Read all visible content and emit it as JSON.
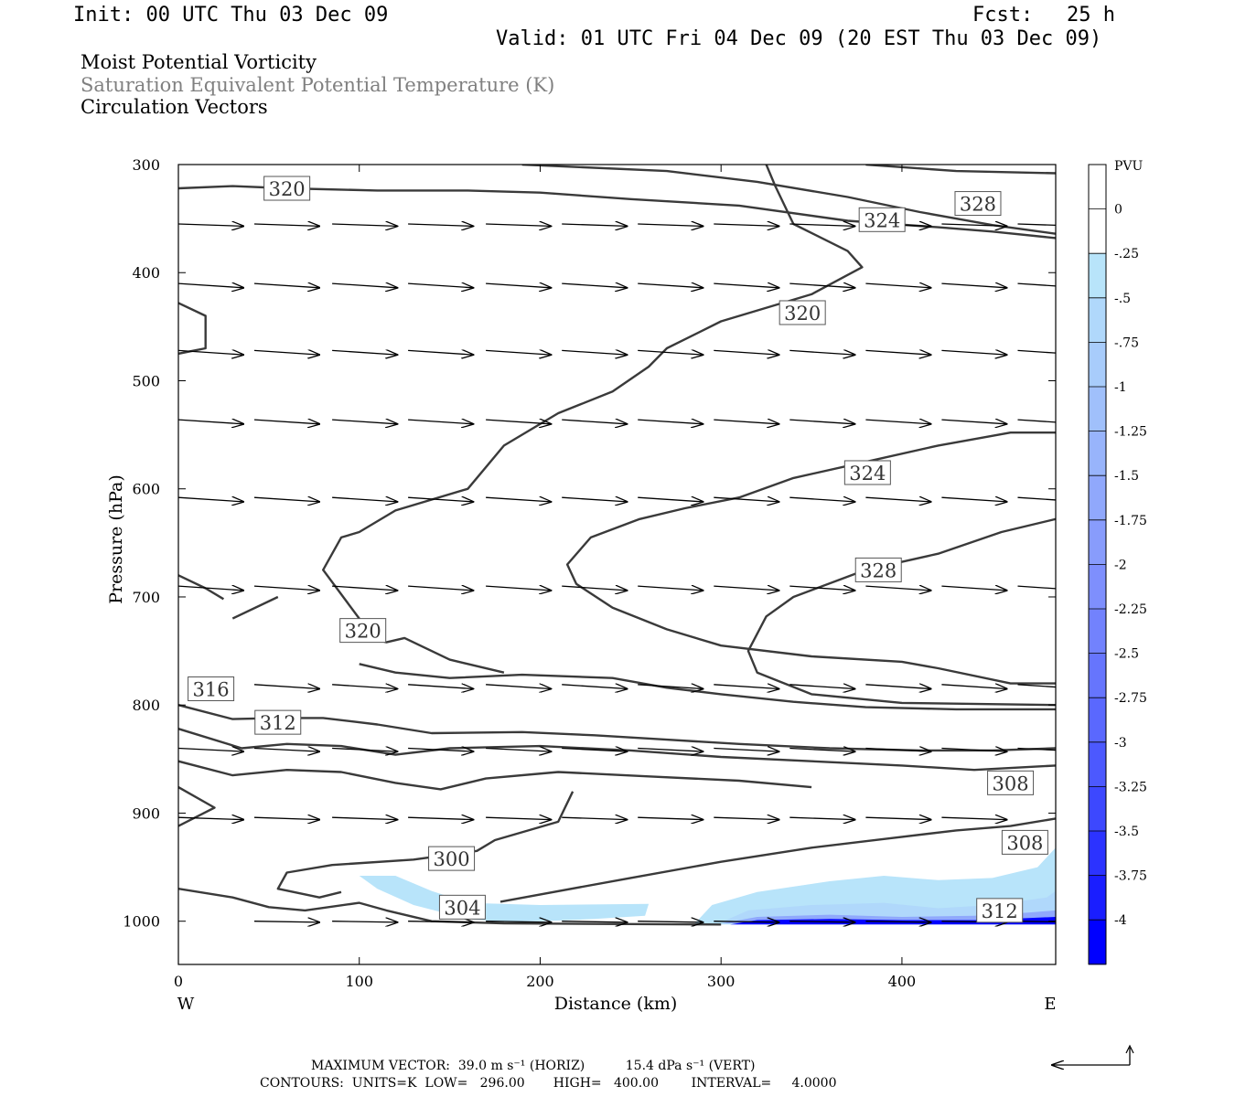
{
  "header": {
    "init": "Init: 00 UTC Thu 03 Dec 09",
    "fcst_label": "Fcst:",
    "fcst_value": "25 h",
    "valid": "Valid: 01 UTC Fri 04 Dec 09 (20 EST Thu 03 Dec 09)"
  },
  "titles": {
    "line1": "Moist Potential Vorticity",
    "line2": "Saturation Equivalent Potential Temperature (K)",
    "line3": "Circulation Vectors"
  },
  "colors": {
    "contour": "#3a3a3a",
    "shade_light": "#b8e4fa",
    "shade_dark": "#0000ff",
    "axis": "#000000"
  },
  "chart_data": {
    "type": "contour-cross-section",
    "xlabel": "Distance (km)",
    "ylabel": "Pressure (hPa)",
    "xlim": [
      0,
      485
    ],
    "ylim": [
      1040,
      300
    ],
    "x_ticks": [
      0,
      100,
      200,
      300,
      400
    ],
    "y_ticks": [
      300,
      400,
      500,
      600,
      700,
      800,
      900,
      1000
    ],
    "west_label": "W",
    "east_label": "E",
    "colorbar": {
      "title": "PVU",
      "levels": [
        "0",
        "-.25",
        "-.5",
        "-.75",
        "-1",
        "-1.25",
        "-1.5",
        "-1.75",
        "-2",
        "-2.25",
        "-2.5",
        "-2.75",
        "-3",
        "-3.25",
        "-3.5",
        "-3.75",
        "-4"
      ],
      "colors": [
        "#ffffff",
        "#ffffff",
        "#b8e4fa",
        "#b0d8fb",
        "#a8ccfb",
        "#a0c0fb",
        "#98b4fb",
        "#90a8fc",
        "#889cfc",
        "#7e8ffd",
        "#7282fd",
        "#6675fd",
        "#5a68fe",
        "#4c59fe",
        "#3d48fe",
        "#2c33ff",
        "#1a1eff",
        "#0000ff"
      ]
    },
    "contour_labels": [
      {
        "text": "320",
        "x": 60,
        "p": 322
      },
      {
        "text": "328",
        "x": 442,
        "p": 336
      },
      {
        "text": "324",
        "x": 389,
        "p": 351
      },
      {
        "text": "320",
        "x": 345,
        "p": 437
      },
      {
        "text": "324",
        "x": 381,
        "p": 585
      },
      {
        "text": "328",
        "x": 387,
        "p": 675
      },
      {
        "text": "320",
        "x": 102,
        "p": 731
      },
      {
        "text": "316",
        "x": 18,
        "p": 785
      },
      {
        "text": "312",
        "x": 55,
        "p": 816
      },
      {
        "text": "308",
        "x": 460,
        "p": 872
      },
      {
        "text": "308",
        "x": 468,
        "p": 927
      },
      {
        "text": "300",
        "x": 151,
        "p": 942
      },
      {
        "text": "304",
        "x": 157,
        "p": 987
      },
      {
        "text": "312",
        "x": 454,
        "p": 990
      }
    ],
    "contours": [
      [
        [
          0,
          322
        ],
        [
          30,
          320
        ],
        [
          60,
          322
        ],
        [
          110,
          324
        ],
        [
          160,
          324
        ],
        [
          200,
          326
        ],
        [
          250,
          332
        ],
        [
          310,
          338
        ],
        [
          370,
          352
        ],
        [
          420,
          358
        ],
        [
          450,
          362
        ],
        [
          485,
          368
        ]
      ],
      [
        [
          190,
          300
        ],
        [
          270,
          306
        ],
        [
          320,
          316
        ],
        [
          370,
          330
        ],
        [
          410,
          344
        ],
        [
          450,
          356
        ],
        [
          485,
          364
        ]
      ],
      [
        [
          380,
          300
        ],
        [
          430,
          306
        ],
        [
          485,
          308
        ]
      ],
      [
        [
          0,
          428
        ],
        [
          15,
          440
        ],
        [
          15,
          470
        ],
        [
          0,
          475
        ]
      ],
      [
        [
          30,
          720
        ],
        [
          55,
          700
        ]
      ],
      [
        [
          0,
          680
        ],
        [
          15,
          692
        ],
        [
          25,
          702
        ]
      ],
      [
        [
          218,
          880
        ],
        [
          210,
          908
        ],
        [
          175,
          925
        ],
        [
          165,
          935
        ],
        [
          130,
          943
        ],
        [
          85,
          948
        ],
        [
          60,
          955
        ],
        [
          55,
          970
        ],
        [
          78,
          978
        ],
        [
          90,
          973
        ]
      ],
      [
        [
          0,
          970
        ],
        [
          30,
          978
        ],
        [
          50,
          987
        ],
        [
          70,
          990
        ],
        [
          100,
          983
        ],
        [
          115,
          990
        ],
        [
          140,
          1000
        ],
        [
          180,
          1002
        ],
        [
          300,
          1003
        ]
      ],
      [
        [
          100,
          762
        ],
        [
          120,
          770
        ],
        [
          150,
          775
        ],
        [
          190,
          772
        ],
        [
          240,
          775
        ],
        [
          270,
          784
        ],
        [
          300,
          790
        ],
        [
          340,
          797
        ],
        [
          380,
          802
        ],
        [
          430,
          804
        ],
        [
          485,
          804
        ]
      ],
      [
        [
          0,
          800
        ],
        [
          30,
          813
        ],
        [
          55,
          812
        ],
        [
          80,
          812
        ],
        [
          110,
          818
        ],
        [
          140,
          826
        ],
        [
          190,
          825
        ],
        [
          230,
          828
        ],
        [
          270,
          832
        ],
        [
          310,
          836
        ],
        [
          360,
          840
        ],
        [
          410,
          842
        ],
        [
          450,
          842
        ],
        [
          485,
          840
        ]
      ],
      [
        [
          0,
          822
        ],
        [
          35,
          840
        ],
        [
          60,
          836
        ],
        [
          90,
          838
        ],
        [
          120,
          846
        ],
        [
          150,
          840
        ],
        [
          200,
          838
        ],
        [
          250,
          842
        ],
        [
          300,
          848
        ],
        [
          350,
          852
        ],
        [
          400,
          856
        ],
        [
          440,
          860
        ],
        [
          485,
          856
        ]
      ],
      [
        [
          0,
          852
        ],
        [
          30,
          865
        ],
        [
          60,
          860
        ],
        [
          90,
          862
        ],
        [
          120,
          872
        ],
        [
          145,
          878
        ],
        [
          170,
          868
        ],
        [
          210,
          862
        ],
        [
          260,
          866
        ],
        [
          310,
          870
        ],
        [
          350,
          876
        ]
      ],
      [
        [
          0,
          876
        ],
        [
          20,
          895
        ],
        [
          0,
          912
        ]
      ],
      [
        [
          320,
          280
        ],
        [
          330,
          320
        ],
        [
          340,
          355
        ],
        [
          370,
          380
        ],
        [
          378,
          395
        ],
        [
          350,
          420
        ],
        [
          300,
          445
        ],
        [
          270,
          470
        ],
        [
          260,
          487
        ],
        [
          240,
          510
        ],
        [
          210,
          530
        ],
        [
          180,
          560
        ],
        [
          160,
          600
        ],
        [
          120,
          620
        ],
        [
          100,
          640
        ],
        [
          90,
          645
        ],
        [
          80,
          675
        ],
        [
          100,
          720
        ],
        [
          100,
          735
        ],
        [
          115,
          742
        ],
        [
          125,
          738
        ],
        [
          150,
          758
        ],
        [
          180,
          770
        ]
      ],
      [
        [
          485,
          548
        ],
        [
          460,
          548
        ],
        [
          420,
          560
        ],
        [
          380,
          575
        ],
        [
          340,
          590
        ],
        [
          310,
          608
        ],
        [
          280,
          618
        ],
        [
          255,
          628
        ],
        [
          228,
          645
        ],
        [
          215,
          670
        ],
        [
          220,
          688
        ],
        [
          240,
          710
        ],
        [
          270,
          730
        ],
        [
          300,
          745
        ],
        [
          350,
          755
        ],
        [
          400,
          760
        ],
        [
          420,
          766
        ],
        [
          460,
          780
        ],
        [
          485,
          780
        ]
      ],
      [
        [
          485,
          628
        ],
        [
          455,
          640
        ],
        [
          420,
          660
        ],
        [
          380,
          675
        ],
        [
          340,
          700
        ],
        [
          325,
          718
        ],
        [
          315,
          750
        ],
        [
          320,
          770
        ],
        [
          350,
          790
        ],
        [
          400,
          798
        ],
        [
          485,
          800
        ]
      ],
      [
        [
          178,
          982
        ],
        [
          250,
          960
        ],
        [
          300,
          945
        ],
        [
          350,
          932
        ],
        [
          390,
          924
        ],
        [
          430,
          916
        ],
        [
          460,
          912
        ],
        [
          485,
          905
        ]
      ]
    ],
    "shaded_regions": [
      {
        "level": "-.25",
        "points": [
          [
            100,
            958
          ],
          [
            120,
            958
          ],
          [
            140,
            972
          ],
          [
            160,
            983
          ],
          [
            200,
            985
          ],
          [
            260,
            984
          ],
          [
            258,
            995
          ],
          [
            230,
            998
          ],
          [
            200,
            1000
          ],
          [
            175,
            1000
          ],
          [
            160,
            998
          ],
          [
            130,
            985
          ],
          [
            110,
            970
          ]
        ]
      },
      {
        "level": "-.25",
        "points": [
          [
            285,
            1003
          ],
          [
            295,
            985
          ],
          [
            320,
            973
          ],
          [
            360,
            963
          ],
          [
            390,
            958
          ],
          [
            420,
            962
          ],
          [
            450,
            960
          ],
          [
            475,
            950
          ],
          [
            485,
            932
          ],
          [
            485,
            1003
          ]
        ]
      },
      {
        "level": "-.5",
        "points": [
          [
            300,
            1001
          ],
          [
            315,
            990
          ],
          [
            350,
            985
          ],
          [
            390,
            983
          ],
          [
            420,
            988
          ],
          [
            450,
            985
          ],
          [
            480,
            978
          ],
          [
            485,
            972
          ],
          [
            485,
            1001
          ]
        ]
      },
      {
        "level": "-1.5",
        "points": [
          [
            300,
            1002
          ],
          [
            320,
            996
          ],
          [
            360,
            994
          ],
          [
            400,
            996
          ],
          [
            440,
            995
          ],
          [
            470,
            992
          ],
          [
            485,
            990
          ],
          [
            485,
            1002
          ]
        ]
      },
      {
        "level": "-4",
        "points": [
          [
            305,
            1003
          ],
          [
            320,
            999
          ],
          [
            360,
            998
          ],
          [
            400,
            999
          ],
          [
            440,
            999
          ],
          [
            470,
            997
          ],
          [
            485,
            996
          ],
          [
            485,
            1003
          ]
        ]
      }
    ],
    "vectors_note": "horizontal circulation arrows, drawn in data units (km, hPa)",
    "vector_rows": [
      {
        "p": 355,
        "y_end": 357,
        "starts": [
          0,
          42,
          85,
          127,
          170,
          212,
          254,
          296,
          338,
          380,
          422,
          464
        ]
      },
      {
        "p": 410,
        "y_end": 414,
        "starts": [
          0,
          42,
          85,
          127,
          170,
          212,
          254,
          296,
          338,
          380,
          422,
          464
        ]
      },
      {
        "p": 472,
        "y_end": 476,
        "starts": [
          0,
          42,
          85,
          127,
          170,
          212,
          254,
          296,
          338,
          380,
          422,
          464
        ]
      },
      {
        "p": 536,
        "y_end": 540,
        "starts": [
          0,
          42,
          85,
          127,
          170,
          212,
          254,
          296,
          338,
          380,
          422,
          464
        ]
      },
      {
        "p": 608,
        "y_end": 612,
        "starts": [
          0,
          42,
          85,
          127,
          170,
          212,
          254,
          296,
          338,
          380,
          422,
          464
        ]
      },
      {
        "p": 690,
        "y_end": 694,
        "starts": [
          0,
          42,
          85,
          127,
          170,
          212,
          254,
          296,
          338,
          380,
          422,
          464
        ]
      },
      {
        "p": 781,
        "y_end": 785,
        "starts": [
          42,
          85,
          127,
          170,
          212,
          254,
          296,
          338,
          380,
          422,
          464
        ]
      },
      {
        "p": 840,
        "y_end": 843,
        "starts": [
          0,
          42,
          85,
          127,
          170,
          212,
          254,
          296,
          338,
          380,
          422,
          464
        ]
      },
      {
        "p": 904,
        "y_end": 906,
        "starts": [
          0,
          42,
          85,
          127,
          170,
          212,
          254,
          296,
          338,
          380,
          422
        ]
      },
      {
        "p": 1000,
        "y_end": 1001,
        "starts": [
          42,
          85,
          127,
          170,
          212,
          254,
          296,
          338,
          380,
          422,
          464
        ]
      }
    ],
    "vector_length_km": 36
  },
  "footer": {
    "max_vector": "MAXIMUM VECTOR:  39.0 m s⁻¹ (HORIZ)          15.4 dPa s⁻¹ (VERT)",
    "contours": "CONTOURS:  UNITS=K  LOW=   296.00       HIGH=   400.00        INTERVAL=     4.0000"
  }
}
